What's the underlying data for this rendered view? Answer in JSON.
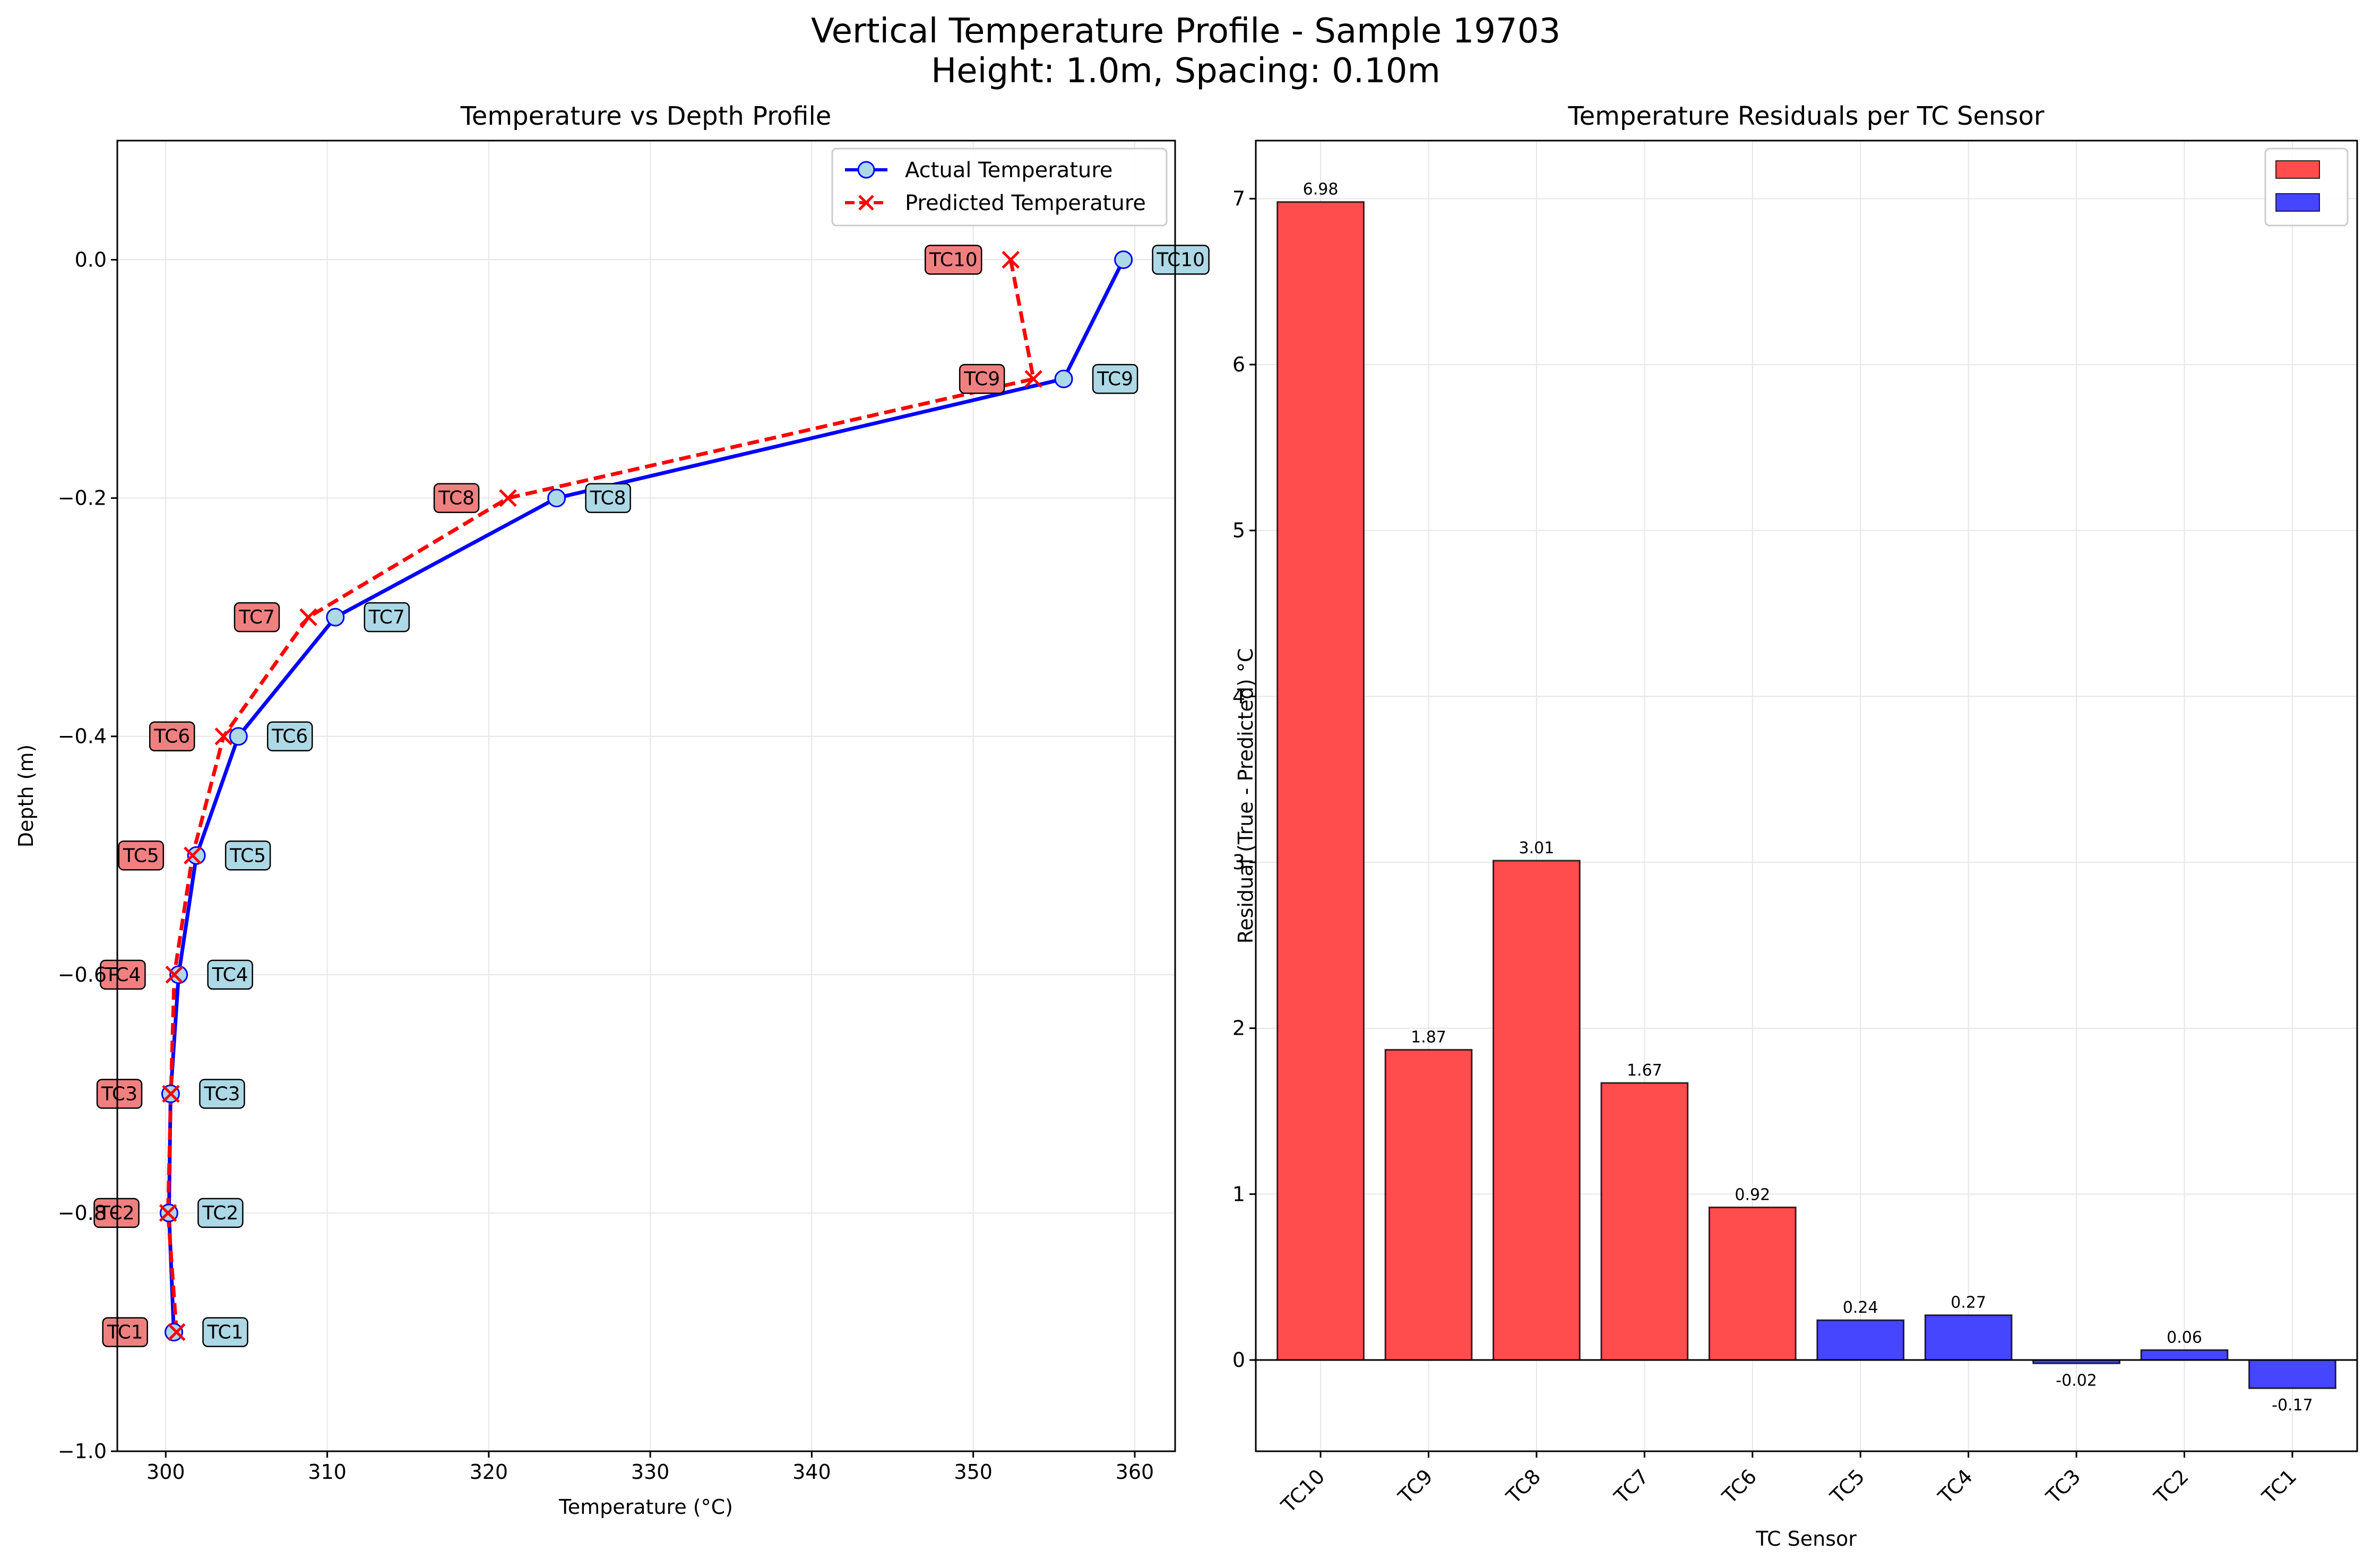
{
  "figure": {
    "title_line1": "Vertical Temperature Profile - Sample 19703",
    "title_line2": "Height: 1.0m, Spacing: 0.10m"
  },
  "chart_data": [
    {
      "type": "line",
      "title": "Temperature vs Depth Profile",
      "xlabel": "Temperature (°C)",
      "ylabel": "Depth (m)",
      "xlim": [
        297,
        362.5
      ],
      "ylim": [
        -1.0,
        0.1
      ],
      "xticks": [
        300,
        310,
        320,
        330,
        340,
        350,
        360
      ],
      "yticks": [
        0.0,
        -0.2,
        -0.4,
        -0.6,
        -0.8,
        -1.0
      ],
      "ytick_labels": [
        "0.0",
        "−0.2",
        "−0.4",
        "−0.6",
        "−0.8",
        "−1.0"
      ],
      "grid": true,
      "legend_position": "upper right",
      "sensors": [
        "TC1",
        "TC2",
        "TC3",
        "TC4",
        "TC5",
        "TC6",
        "TC7",
        "TC8",
        "TC9",
        "TC10"
      ],
      "depth": [
        -0.9,
        -0.8,
        -0.7,
        -0.6,
        -0.5,
        -0.4,
        -0.3,
        -0.2,
        -0.1,
        0.0
      ],
      "series": [
        {
          "name": "Actual Temperature",
          "color": "#0000ff",
          "marker": "circle",
          "linestyle": "solid",
          "label_bg": "#add8e6",
          "values": [
            300.5,
            300.2,
            300.3,
            300.8,
            301.9,
            304.5,
            310.5,
            324.2,
            355.6,
            359.3
          ]
        },
        {
          "name": "Predicted Temperature",
          "color": "#ff0000",
          "marker": "x",
          "linestyle": "dashed",
          "label_bg": "#f08080",
          "values": [
            300.67,
            300.14,
            300.32,
            300.53,
            301.66,
            303.58,
            308.83,
            321.19,
            353.73,
            352.32
          ]
        }
      ]
    },
    {
      "type": "bar",
      "title": "Temperature Residuals per TC Sensor",
      "xlabel": "TC Sensor",
      "ylabel": "Residual (True - Predicted) °C",
      "ylim": [
        -0.55,
        7.35
      ],
      "yticks": [
        0,
        1,
        2,
        3,
        4,
        5,
        6,
        7
      ],
      "grid": true,
      "legend_position": "upper right",
      "legend_colors": [
        "#ff4d4d",
        "#4646ff"
      ],
      "categories": [
        "TC10",
        "TC9",
        "TC8",
        "TC7",
        "TC6",
        "TC5",
        "TC4",
        "TC3",
        "TC2",
        "TC1"
      ],
      "values": [
        6.98,
        1.87,
        3.01,
        1.67,
        0.92,
        0.24,
        0.27,
        -0.02,
        0.06,
        -0.17
      ],
      "value_labels": [
        "6.98",
        "1.87",
        "3.01",
        "1.67",
        "0.92",
        "0.24",
        "0.27",
        "-0.02",
        "0.06",
        "-0.17"
      ],
      "bar_colors": [
        "#ff4d4d",
        "#ff4d4d",
        "#ff4d4d",
        "#ff4d4d",
        "#ff4d4d",
        "#4646ff",
        "#4646ff",
        "#4646ff",
        "#4646ff",
        "#4646ff"
      ]
    }
  ]
}
